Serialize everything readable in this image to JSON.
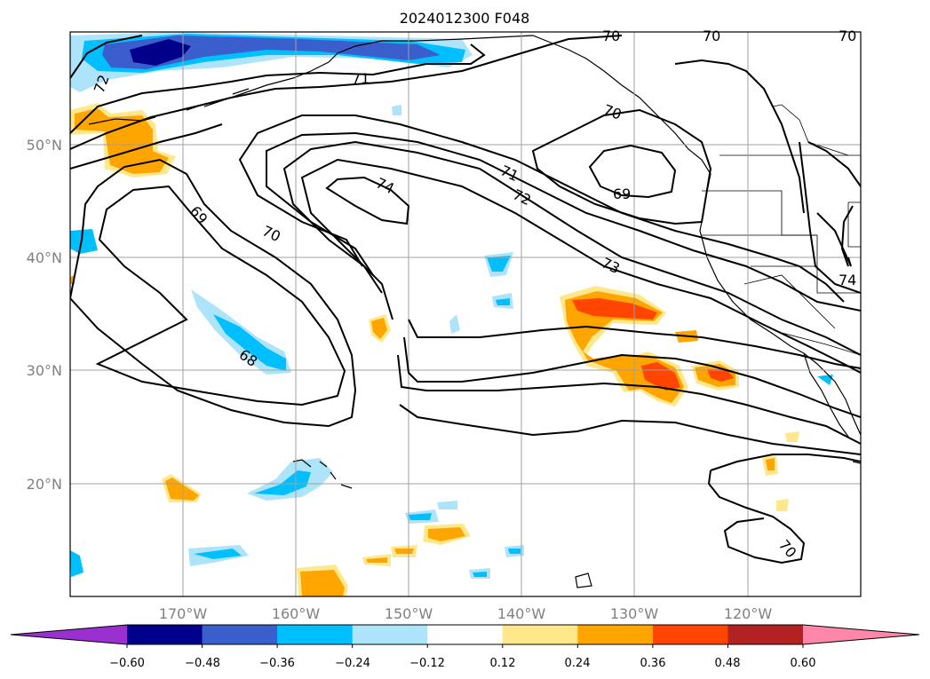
{
  "title": "2024012300 F048",
  "lat_labels": [
    "50°N",
    "40°N",
    "30°N",
    "20°N"
  ],
  "lon_labels": [
    "170°W",
    "160°W",
    "150°W",
    "140°W",
    "130°W",
    "120°W"
  ],
  "colorbar": {
    "labels": [
      "−0.60",
      "−0.48",
      "−0.36",
      "−0.24",
      "−0.12",
      "0.12",
      "0.24",
      "0.36",
      "0.48",
      "0.60"
    ],
    "colors": [
      "#9b30d0",
      "#00008b",
      "#3a5fcd",
      "#00bfff",
      "#ade4fa",
      "#ffffff",
      "#ffe88c",
      "#ffa500",
      "#ff4500",
      "#b22222",
      "#ff88aa"
    ]
  },
  "contour_labels": [
    "72",
    "71",
    "70",
    "70",
    "70",
    "70",
    "69",
    "74",
    "70",
    "71",
    "72",
    "73",
    "69",
    "68",
    "74",
    "70"
  ],
  "map": {
    "projection": "lat-lon",
    "extent_lon": [
      -180,
      -110
    ],
    "extent_lat": [
      10,
      60
    ],
    "fill_colors": {
      "neg_light": "#ade4fa",
      "neg_mid": "#00bfff",
      "neg_dark": "#3a5fcd",
      "neg_darkest": "#00008b",
      "pos_light": "#ffe88c",
      "pos_mid": "#ffa500",
      "pos_dark": "#ff4500"
    }
  }
}
